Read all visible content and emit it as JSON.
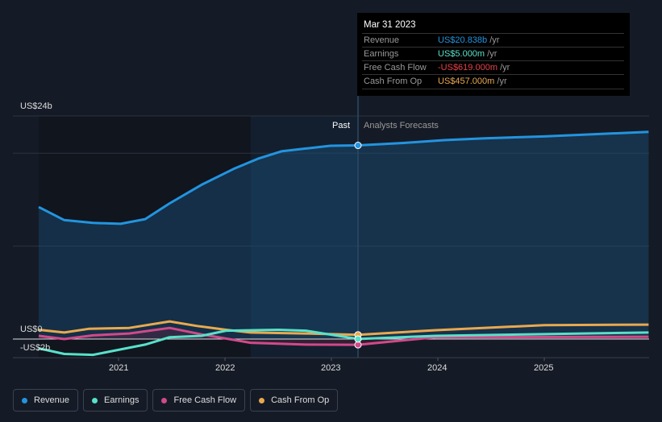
{
  "chart_data": {
    "type": "line",
    "y_axis_labels": [
      "US$24b",
      "US$0",
      "-US$2b"
    ],
    "ylim": [
      -2,
      24
    ],
    "x_ticks": [
      "2021",
      "2022",
      "2023",
      "2024",
      "2025"
    ],
    "xlim": [
      2020.25,
      2025.98
    ],
    "past_label": "Past",
    "forecast_label": "Analysts Forecasts",
    "forecast_start": 2023.25,
    "series": [
      {
        "name": "Revenue",
        "color": "#2394df",
        "points": [
          [
            2020.25,
            14.2
          ],
          [
            2020.49,
            12.8
          ],
          [
            2020.76,
            12.5
          ],
          [
            2021.02,
            12.4
          ],
          [
            2021.25,
            12.9
          ],
          [
            2021.48,
            14.6
          ],
          [
            2021.78,
            16.6
          ],
          [
            2022.08,
            18.3
          ],
          [
            2022.31,
            19.4
          ],
          [
            2022.53,
            20.2
          ],
          [
            2022.76,
            20.5
          ],
          [
            2022.99,
            20.8
          ],
          [
            2023.25,
            20.84
          ],
          [
            2023.68,
            21.1
          ],
          [
            2024.06,
            21.4
          ],
          [
            2024.44,
            21.6
          ],
          [
            2025.0,
            21.8
          ],
          [
            2025.98,
            22.3
          ]
        ]
      },
      {
        "name": "Earnings",
        "color": "#58e1c9",
        "points": [
          [
            2020.25,
            -1.0
          ],
          [
            2020.49,
            -1.6
          ],
          [
            2020.76,
            -1.7
          ],
          [
            2021.25,
            -0.6
          ],
          [
            2021.48,
            0.2
          ],
          [
            2021.78,
            0.35
          ],
          [
            2022.01,
            0.9
          ],
          [
            2022.5,
            1.0
          ],
          [
            2022.76,
            0.9
          ],
          [
            2023.25,
            0.005
          ],
          [
            2023.98,
            0.35
          ],
          [
            2025.98,
            0.7
          ]
        ]
      },
      {
        "name": "Free Cash Flow",
        "color": "#d04a8a",
        "points": [
          [
            2020.25,
            0.35
          ],
          [
            2020.49,
            0.0
          ],
          [
            2020.76,
            0.4
          ],
          [
            2021.1,
            0.6
          ],
          [
            2021.48,
            1.2
          ],
          [
            2021.78,
            0.5
          ],
          [
            2022.24,
            -0.4
          ],
          [
            2022.76,
            -0.6
          ],
          [
            2023.25,
            -0.619
          ],
          [
            2023.98,
            0.2
          ],
          [
            2025.98,
            0.25
          ]
        ]
      },
      {
        "name": "Cash From Op",
        "color": "#e8a94f",
        "points": [
          [
            2020.25,
            1.0
          ],
          [
            2020.49,
            0.7
          ],
          [
            2020.72,
            1.1
          ],
          [
            2021.1,
            1.2
          ],
          [
            2021.48,
            1.9
          ],
          [
            2021.74,
            1.4
          ],
          [
            2022.01,
            1.0
          ],
          [
            2022.24,
            0.7
          ],
          [
            2022.76,
            0.6
          ],
          [
            2023.25,
            0.457
          ],
          [
            2023.98,
            0.95
          ],
          [
            2025.0,
            1.5
          ],
          [
            2025.98,
            1.55
          ]
        ]
      }
    ]
  },
  "tooltip": {
    "date": "Mar 31 2023",
    "rows": [
      {
        "label": "Revenue",
        "value": "US$20.838b",
        "unit": "/yr",
        "color": "#2394df"
      },
      {
        "label": "Earnings",
        "value": "US$5.000m",
        "unit": "/yr",
        "color": "#58e1c9"
      },
      {
        "label": "Free Cash Flow",
        "value": "-US$619.000m",
        "unit": "/yr",
        "color": "#e8404a"
      },
      {
        "label": "Cash From Op",
        "value": "US$457.000m",
        "unit": "/yr",
        "color": "#e8a94f"
      }
    ]
  }
}
